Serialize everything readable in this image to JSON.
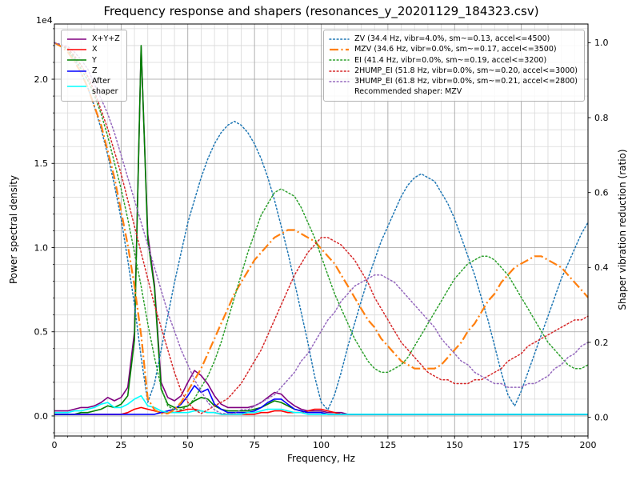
{
  "chart_data": {
    "type": "line",
    "title": "Frequency response and shapers (resonances_y_20201129_184323.csv)",
    "recommended_note": "Recommended shaper: MZV",
    "axes": {
      "x": {
        "label": "Frequency, Hz",
        "min": 0,
        "max": 200,
        "ticks": [
          0,
          25,
          50,
          75,
          100,
          125,
          150,
          175,
          200
        ],
        "minor_step": 5
      },
      "y_left": {
        "label": "Power spectral density",
        "offset": "1e4",
        "ticks": [
          0,
          0.5,
          1,
          1.5,
          2
        ],
        "tick_labels": [
          "0.0",
          "0.5",
          "1.0",
          "1.5",
          "2.0"
        ],
        "minor_step": 0.1,
        "unit_scale": 10000
      },
      "y_right": {
        "label": "Shaper vibration reduction (ratio)",
        "ticks": [
          0,
          0.2,
          0.4,
          0.6,
          0.8,
          1
        ],
        "tick_labels": [
          "0.0",
          "0.2",
          "0.4",
          "0.6",
          "0.8",
          "1.0"
        ]
      }
    },
    "x_grid": {
      "start": 0,
      "step": 2.5,
      "count": 81
    },
    "grid": {
      "major_color": "#9e9e9e",
      "minor_color": "#d9d9d9"
    },
    "psd_series": [
      {
        "name": "X+Y+Z",
        "label": "X+Y+Z",
        "color": "#800080",
        "style": "solid",
        "values": [
          0.03,
          0.03,
          0.03,
          0.04,
          0.05,
          0.05,
          0.06,
          0.08,
          0.11,
          0.09,
          0.11,
          0.17,
          0.5,
          2.19,
          1.08,
          0.78,
          0.2,
          0.11,
          0.09,
          0.12,
          0.2,
          0.27,
          0.24,
          0.19,
          0.12,
          0.07,
          0.05,
          0.05,
          0.05,
          0.05,
          0.06,
          0.08,
          0.11,
          0.14,
          0.13,
          0.09,
          0.06,
          0.04,
          0.03,
          0.03,
          0.03,
          0.02,
          0.02,
          0.02,
          0.01
        ]
      },
      {
        "name": "X",
        "label": "X",
        "color": "#ff0000",
        "style": "solid",
        "values": [
          0.01,
          0.01,
          0.01,
          0.01,
          0.01,
          0.01,
          0.01,
          0.01,
          0.01,
          0.01,
          0.01,
          0.02,
          0.04,
          0.05,
          0.04,
          0.03,
          0.02,
          0.02,
          0.02,
          0.03,
          0.04,
          0.04,
          0.03,
          0.02,
          0.02,
          0.01,
          0.01,
          0.01,
          0.01,
          0.01,
          0.01,
          0.02,
          0.02,
          0.03,
          0.03,
          0.02,
          0.02,
          0.02,
          0.03,
          0.04,
          0.04,
          0.03,
          0.02,
          0.01
        ]
      },
      {
        "name": "Y",
        "label": "Y",
        "color": "#008000",
        "style": "solid",
        "values": [
          0.01,
          0.01,
          0.01,
          0.01,
          0.02,
          0.02,
          0.03,
          0.04,
          0.06,
          0.05,
          0.07,
          0.12,
          0.45,
          2.2,
          1.05,
          0.76,
          0.16,
          0.07,
          0.05,
          0.05,
          0.06,
          0.09,
          0.11,
          0.1,
          0.06,
          0.04,
          0.03,
          0.03,
          0.03,
          0.03,
          0.04,
          0.05,
          0.07,
          0.09,
          0.08,
          0.06,
          0.04,
          0.03,
          0.02,
          0.02,
          0.02,
          0.01
        ]
      },
      {
        "name": "Z",
        "label": "Z",
        "color": "#0000ff",
        "style": "solid",
        "values": [
          0.01,
          0.01,
          0.01,
          0.01,
          0.01,
          0.01,
          0.01,
          0.01,
          0.01,
          0.01,
          0.01,
          0.01,
          0.01,
          0.01,
          0.01,
          0.01,
          0.02,
          0.03,
          0.04,
          0.07,
          0.12,
          0.18,
          0.14,
          0.16,
          0.07,
          0.04,
          0.02,
          0.02,
          0.02,
          0.02,
          0.03,
          0.05,
          0.08,
          0.1,
          0.1,
          0.07,
          0.04,
          0.03,
          0.02,
          0.02,
          0.02,
          0.01
        ]
      },
      {
        "name": "After shaper",
        "label": "After\nshaper",
        "color": "#00ffff",
        "style": "solid",
        "values": [
          0.02,
          0.02,
          0.02,
          0.03,
          0.03,
          0.04,
          0.05,
          0.07,
          0.08,
          0.05,
          0.05,
          0.07,
          0.1,
          0.12,
          0.06,
          0.05,
          0.03,
          0.02,
          0.02,
          0.02,
          0.02,
          0.03,
          0.03,
          0.02,
          0.02,
          0.01,
          0.01,
          0.01,
          0.01,
          0.02,
          0.02,
          0.03,
          0.04,
          0.04,
          0.04,
          0.03,
          0.02,
          0.02,
          0.01
        ]
      }
    ],
    "shaper_series": [
      {
        "name": "ZV",
        "label": "ZV (34.4 Hz, vibr=4.0%, sm~=0.13, accel<=4500)",
        "color": "#1f77b4",
        "style": "dotted",
        "values": [
          1,
          0.995,
          0.98,
          0.955,
          0.92,
          0.88,
          0.83,
          0.77,
          0.7,
          0.62,
          0.53,
          0.42,
          0.3,
          0.16,
          0.04,
          0.09,
          0.18,
          0.27,
          0.36,
          0.44,
          0.52,
          0.58,
          0.64,
          0.69,
          0.73,
          0.76,
          0.78,
          0.79,
          0.78,
          0.76,
          0.73,
          0.69,
          0.64,
          0.58,
          0.51,
          0.44,
          0.36,
          0.28,
          0.2,
          0.11,
          0.04,
          0.02,
          0.06,
          0.12,
          0.19,
          0.25,
          0.31,
          0.37,
          0.42,
          0.47,
          0.51,
          0.55,
          0.59,
          0.62,
          0.64,
          0.65,
          0.64,
          0.63,
          0.6,
          0.57,
          0.53,
          0.48,
          0.43,
          0.38,
          0.32,
          0.26,
          0.19,
          0.12,
          0.06,
          0.03,
          0.07,
          0.12,
          0.17,
          0.22,
          0.27,
          0.32,
          0.37,
          0.41,
          0.45,
          0.49,
          0.52
        ]
      },
      {
        "name": "MZV",
        "label": "MZV (34.6 Hz, vibr=0.0%, sm~=0.17, accel<=3500)",
        "color": "#ff7f0e",
        "style": "dashdot",
        "values": [
          1,
          0.99,
          0.975,
          0.95,
          0.92,
          0.88,
          0.83,
          0.78,
          0.71,
          0.64,
          0.55,
          0.46,
          0.35,
          0.22,
          0.05,
          0.02,
          0.01,
          0.01,
          0.02,
          0.04,
          0.07,
          0.1,
          0.13,
          0.17,
          0.21,
          0.25,
          0.29,
          0.33,
          0.36,
          0.39,
          0.42,
          0.44,
          0.46,
          0.48,
          0.49,
          0.5,
          0.5,
          0.49,
          0.48,
          0.47,
          0.45,
          0.43,
          0.41,
          0.38,
          0.35,
          0.32,
          0.29,
          0.26,
          0.24,
          0.21,
          0.19,
          0.17,
          0.15,
          0.14,
          0.13,
          0.13,
          0.13,
          0.13,
          0.14,
          0.16,
          0.18,
          0.2,
          0.23,
          0.25,
          0.28,
          0.31,
          0.33,
          0.36,
          0.38,
          0.4,
          0.41,
          0.42,
          0.43,
          0.43,
          0.42,
          0.41,
          0.4,
          0.38,
          0.36,
          0.34,
          0.32
        ]
      },
      {
        "name": "EI",
        "label": "EI (41.4 Hz, vibr=0.0%, sm~=0.19, accel<=3200)",
        "color": "#2ca02c",
        "style": "dotted",
        "values": [
          1,
          0.995,
          0.98,
          0.96,
          0.93,
          0.9,
          0.86,
          0.81,
          0.75,
          0.68,
          0.61,
          0.53,
          0.44,
          0.35,
          0.25,
          0.16,
          0.08,
          0.03,
          0.02,
          0.02,
          0.03,
          0.05,
          0.08,
          0.11,
          0.15,
          0.2,
          0.26,
          0.32,
          0.38,
          0.44,
          0.49,
          0.54,
          0.57,
          0.6,
          0.61,
          0.6,
          0.59,
          0.56,
          0.52,
          0.48,
          0.43,
          0.38,
          0.33,
          0.29,
          0.25,
          0.21,
          0.18,
          0.15,
          0.13,
          0.12,
          0.12,
          0.13,
          0.14,
          0.16,
          0.19,
          0.22,
          0.25,
          0.28,
          0.31,
          0.34,
          0.37,
          0.39,
          0.41,
          0.42,
          0.43,
          0.43,
          0.42,
          0.4,
          0.38,
          0.35,
          0.32,
          0.29,
          0.26,
          0.23,
          0.2,
          0.18,
          0.16,
          0.14,
          0.13,
          0.13,
          0.14
        ]
      },
      {
        "name": "2HUMP_EI",
        "label": "2HUMP_EI (51.8 Hz, vibr=0.0%, sm~=0.20, accel<=3000)",
        "color": "#d62728",
        "style": "dotted",
        "values": [
          1,
          0.995,
          0.985,
          0.965,
          0.94,
          0.91,
          0.87,
          0.82,
          0.77,
          0.71,
          0.65,
          0.58,
          0.51,
          0.44,
          0.37,
          0.3,
          0.24,
          0.18,
          0.12,
          0.07,
          0.04,
          0.02,
          0.01,
          0.02,
          0.03,
          0.04,
          0.05,
          0.07,
          0.09,
          0.12,
          0.15,
          0.18,
          0.22,
          0.26,
          0.3,
          0.34,
          0.38,
          0.41,
          0.44,
          0.46,
          0.48,
          0.48,
          0.47,
          0.46,
          0.44,
          0.42,
          0.39,
          0.36,
          0.32,
          0.29,
          0.26,
          0.23,
          0.2,
          0.18,
          0.16,
          0.14,
          0.12,
          0.11,
          0.1,
          0.1,
          0.09,
          0.09,
          0.09,
          0.1,
          0.1,
          0.11,
          0.12,
          0.13,
          0.15,
          0.16,
          0.17,
          0.19,
          0.2,
          0.21,
          0.22,
          0.23,
          0.24,
          0.25,
          0.26,
          0.26,
          0.27
        ]
      },
      {
        "name": "3HUMP_EI",
        "label": "3HUMP_EI (61.8 Hz, vibr=0.0%, sm~=0.21, accel<=2800)",
        "color": "#9467bd",
        "style": "dotted",
        "values": [
          1,
          0.995,
          0.99,
          0.975,
          0.955,
          0.93,
          0.89,
          0.85,
          0.81,
          0.76,
          0.7,
          0.64,
          0.58,
          0.52,
          0.46,
          0.4,
          0.34,
          0.28,
          0.23,
          0.18,
          0.14,
          0.1,
          0.07,
          0.04,
          0.02,
          0.01,
          0.01,
          0.01,
          0.02,
          0.02,
          0.03,
          0.04,
          0.05,
          0.06,
          0.08,
          0.1,
          0.12,
          0.15,
          0.17,
          0.2,
          0.23,
          0.26,
          0.28,
          0.31,
          0.33,
          0.35,
          0.36,
          0.37,
          0.38,
          0.38,
          0.37,
          0.36,
          0.34,
          0.32,
          0.3,
          0.28,
          0.26,
          0.24,
          0.21,
          0.19,
          0.17,
          0.15,
          0.14,
          0.12,
          0.11,
          0.1,
          0.09,
          0.09,
          0.08,
          0.08,
          0.08,
          0.09,
          0.09,
          0.1,
          0.11,
          0.13,
          0.14,
          0.16,
          0.17,
          0.19,
          0.2
        ]
      }
    ]
  }
}
